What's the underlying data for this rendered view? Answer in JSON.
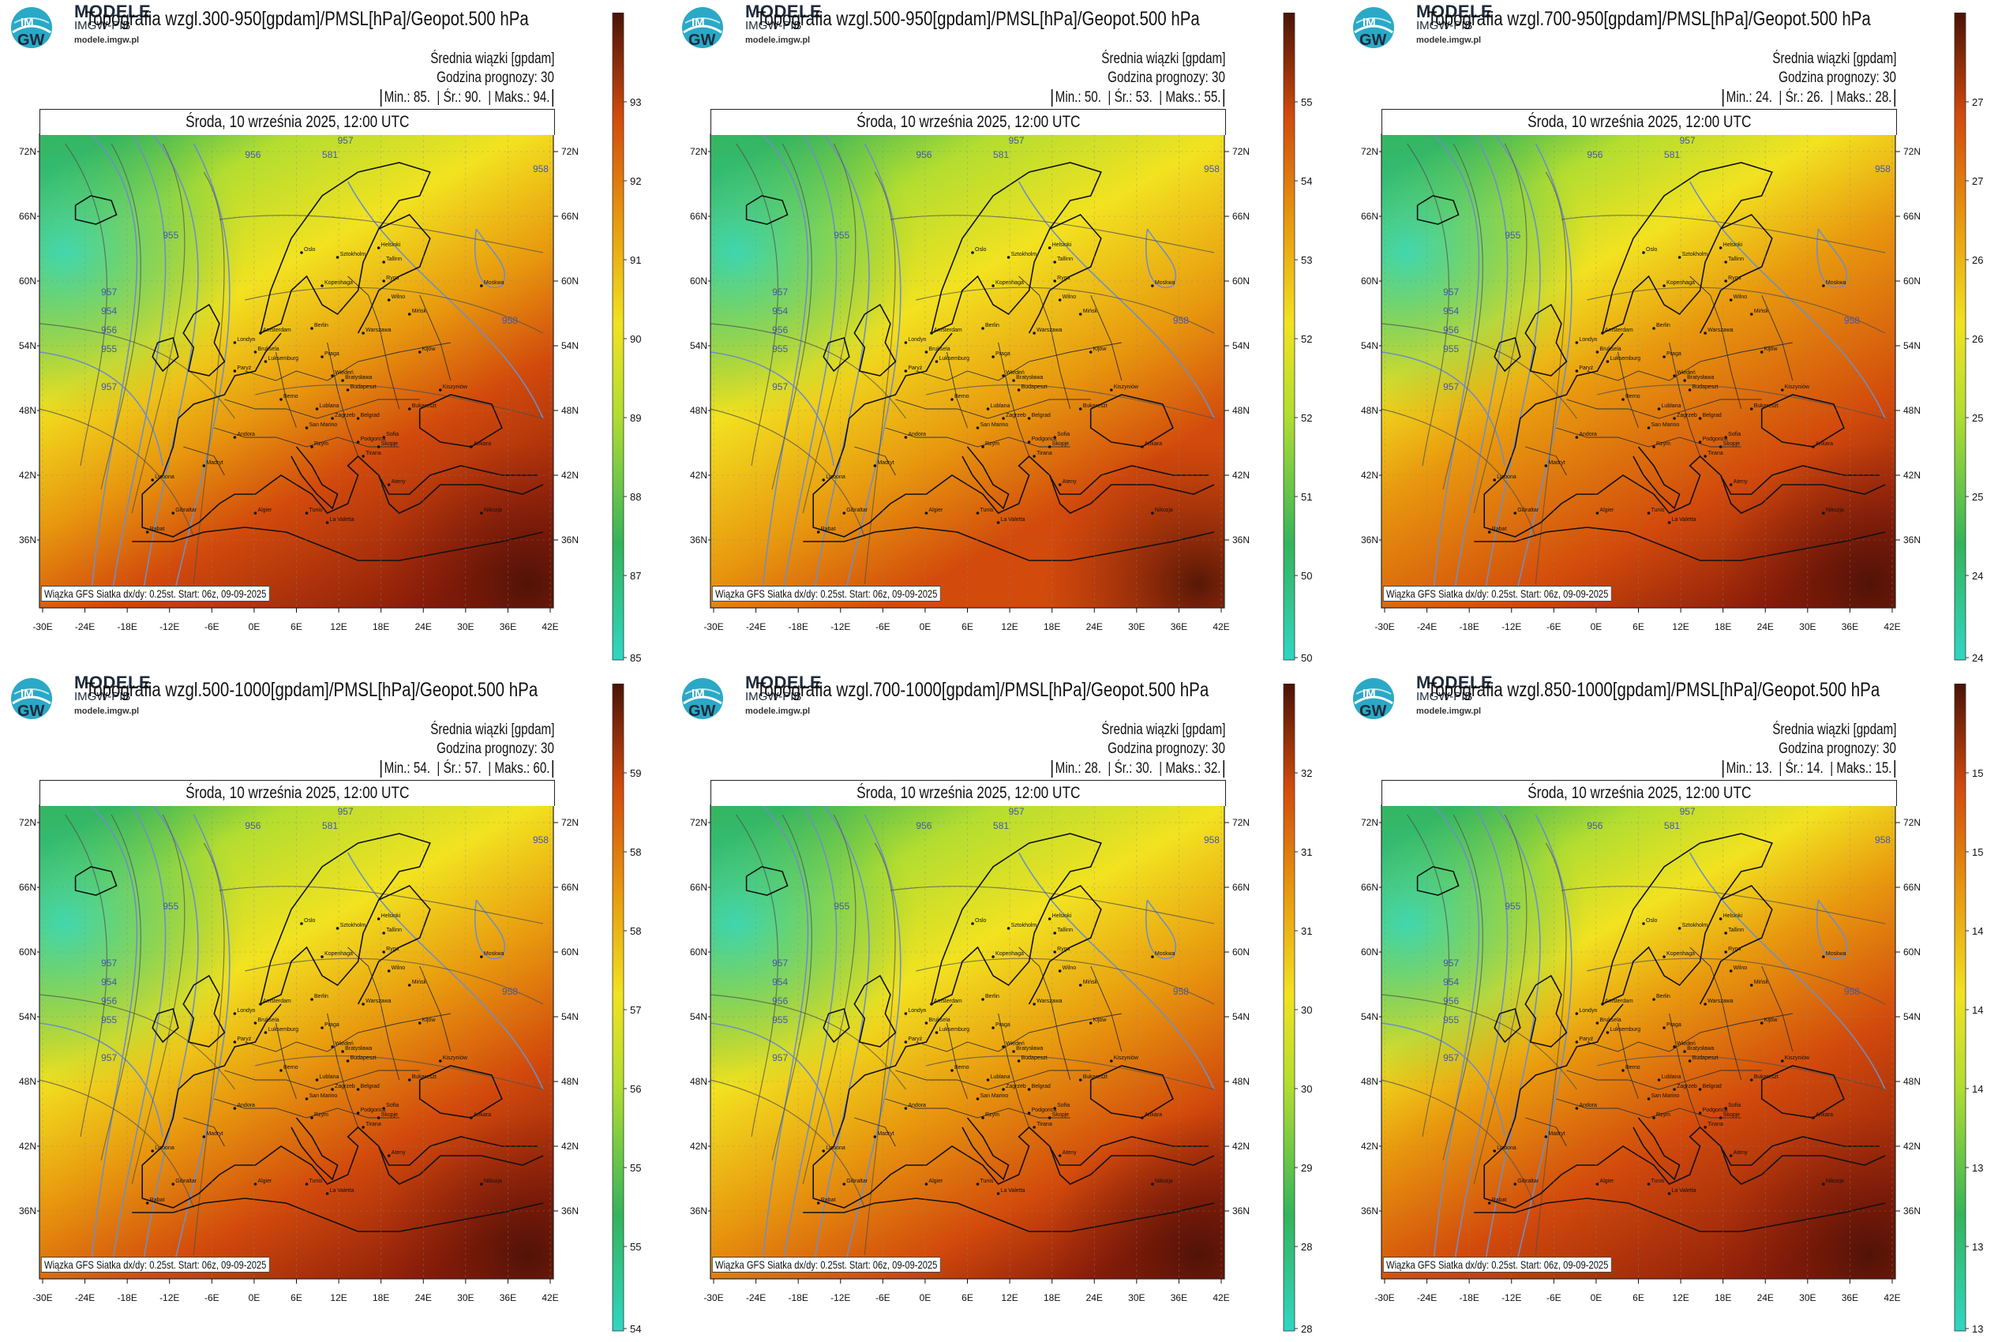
{
  "brand": {
    "name": "MODELE",
    "org": "IMGW-PIB",
    "site": "modele.imgw.pl",
    "logo_text_top": "IM",
    "logo_text_bottom": "GW"
  },
  "common": {
    "subtitle_mean": "Średnia wiązki [gpdam]",
    "subtitle_hour": "Godzina prognozy: 30",
    "date": "Środa, 10 września 2025, 12:00 UTC",
    "footer": "Wiązka GFS Siatka dx/dy: 0.25st. Start: 06z, 09-09-2025",
    "lat_labels": [
      "72N",
      "66N",
      "60N",
      "54N",
      "48N",
      "42N",
      "36N"
    ],
    "lon_labels": [
      "-30E",
      "-24E",
      "-18E",
      "-12E",
      "-6E",
      "0E",
      "6E",
      "12E",
      "18E",
      "24E",
      "30E",
      "36E",
      "42E"
    ],
    "cities": [
      "Oslo",
      "Sztokholm",
      "Helsinki",
      "Tallinn",
      "Ryga",
      "Kopenhaga",
      "Wilno",
      "Mińsk",
      "Moskwa",
      "Amsterdam",
      "Berlin",
      "Warszawa",
      "Londyn",
      "Bruksela",
      "Paryż",
      "Luksemburg",
      "Praga",
      "Kijów",
      "Wiedeń",
      "Bratysława",
      "Budapeszt",
      "Berno",
      "Kiszyniów",
      "Lublana",
      "Zagrzeb",
      "Belgrad",
      "Bukareszt",
      "Sofia",
      "Andora",
      "Madryt",
      "Lizbona",
      "Rzym",
      "Skopje",
      "Tirana",
      "Ateny",
      "Ankara",
      "Algier",
      "Tunis",
      "Gibraltar",
      "Rabat",
      "La Valetta",
      "Nikozja",
      "San Marino",
      "Podgorica"
    ],
    "isobar_labels": [
      "957",
      "956",
      "955",
      "954",
      "957",
      "958",
      "955",
      "581",
      "957",
      "956",
      "958"
    ]
  },
  "panels": [
    {
      "title": "Topografia wzgl.300-950[gpdam]/PMSL[hPa]/Geopot.500 hPa",
      "stats": {
        "min_label": "Min.:",
        "min": "85.",
        "mean_label": "Śr.:",
        "mean": "90.",
        "max_label": "Maks.:",
        "max": "94."
      },
      "colorbar_ticks": [
        "93",
        "92",
        "91",
        "90",
        "89",
        "88",
        "87",
        "85"
      ],
      "field": "300"
    },
    {
      "title": "Topografia wzgl.500-950[gpdam]/PMSL[hPa]/Geopot.500 hPa",
      "stats": {
        "min_label": "Min.:",
        "min": "50.",
        "mean_label": "Śr.:",
        "mean": "53.",
        "max_label": "Maks.:",
        "max": "55."
      },
      "colorbar_ticks": [
        "55",
        "54",
        "53",
        "52",
        "52",
        "51",
        "50",
        "50"
      ],
      "field": "500a"
    },
    {
      "title": "Topografia wzgl.700-950[gpdam]/PMSL[hPa]/Geopot.500 hPa",
      "stats": {
        "min_label": "Min.:",
        "min": "24.",
        "mean_label": "Śr.:",
        "mean": "26.",
        "max_label": "Maks.:",
        "max": "28."
      },
      "colorbar_ticks": [
        "27",
        "27",
        "26",
        "26",
        "25",
        "25",
        "24",
        "24"
      ],
      "field": "700a"
    },
    {
      "title": "Topografia wzgl.500-1000[gpdam]/PMSL[hPa]/Geopot.500 hPa",
      "stats": {
        "min_label": "Min.:",
        "min": "54.",
        "mean_label": "Śr.:",
        "mean": "57.",
        "max_label": "Maks.:",
        "max": "60."
      },
      "colorbar_ticks": [
        "59",
        "58",
        "58",
        "57",
        "56",
        "55",
        "55",
        "54"
      ],
      "field": "500b"
    },
    {
      "title": "Topografia wzgl.700-1000[gpdam]/PMSL[hPa]/Geopot.500 hPa",
      "stats": {
        "min_label": "Min.:",
        "min": "28.",
        "mean_label": "Śr.:",
        "mean": "30.",
        "max_label": "Maks.:",
        "max": "32."
      },
      "colorbar_ticks": [
        "32",
        "31",
        "31",
        "30",
        "30",
        "29",
        "28",
        "28"
      ],
      "field": "700b"
    },
    {
      "title": "Topografia wzgl.850-1000[gpdam]/PMSL[hPa]/Geopot.500 hPa",
      "stats": {
        "min_label": "Min.:",
        "min": "13.",
        "mean_label": "Śr.:",
        "mean": "14.",
        "max_label": "Maks.:",
        "max": "15."
      },
      "colorbar_ticks": [
        "15",
        "15",
        "14",
        "14",
        "14",
        "13",
        "13",
        "13"
      ],
      "field": "850"
    }
  ],
  "colors": {
    "teal": "#2fd6c4",
    "green": "#34b45a",
    "lime": "#b3dd30",
    "yellow": "#f2e220",
    "orange": "#e8980e",
    "red": "#d24a0c",
    "darkred": "#8a1c0a",
    "maroon": "#4a1206",
    "isobar": "#6f8fc4",
    "geopot": "#505050"
  }
}
